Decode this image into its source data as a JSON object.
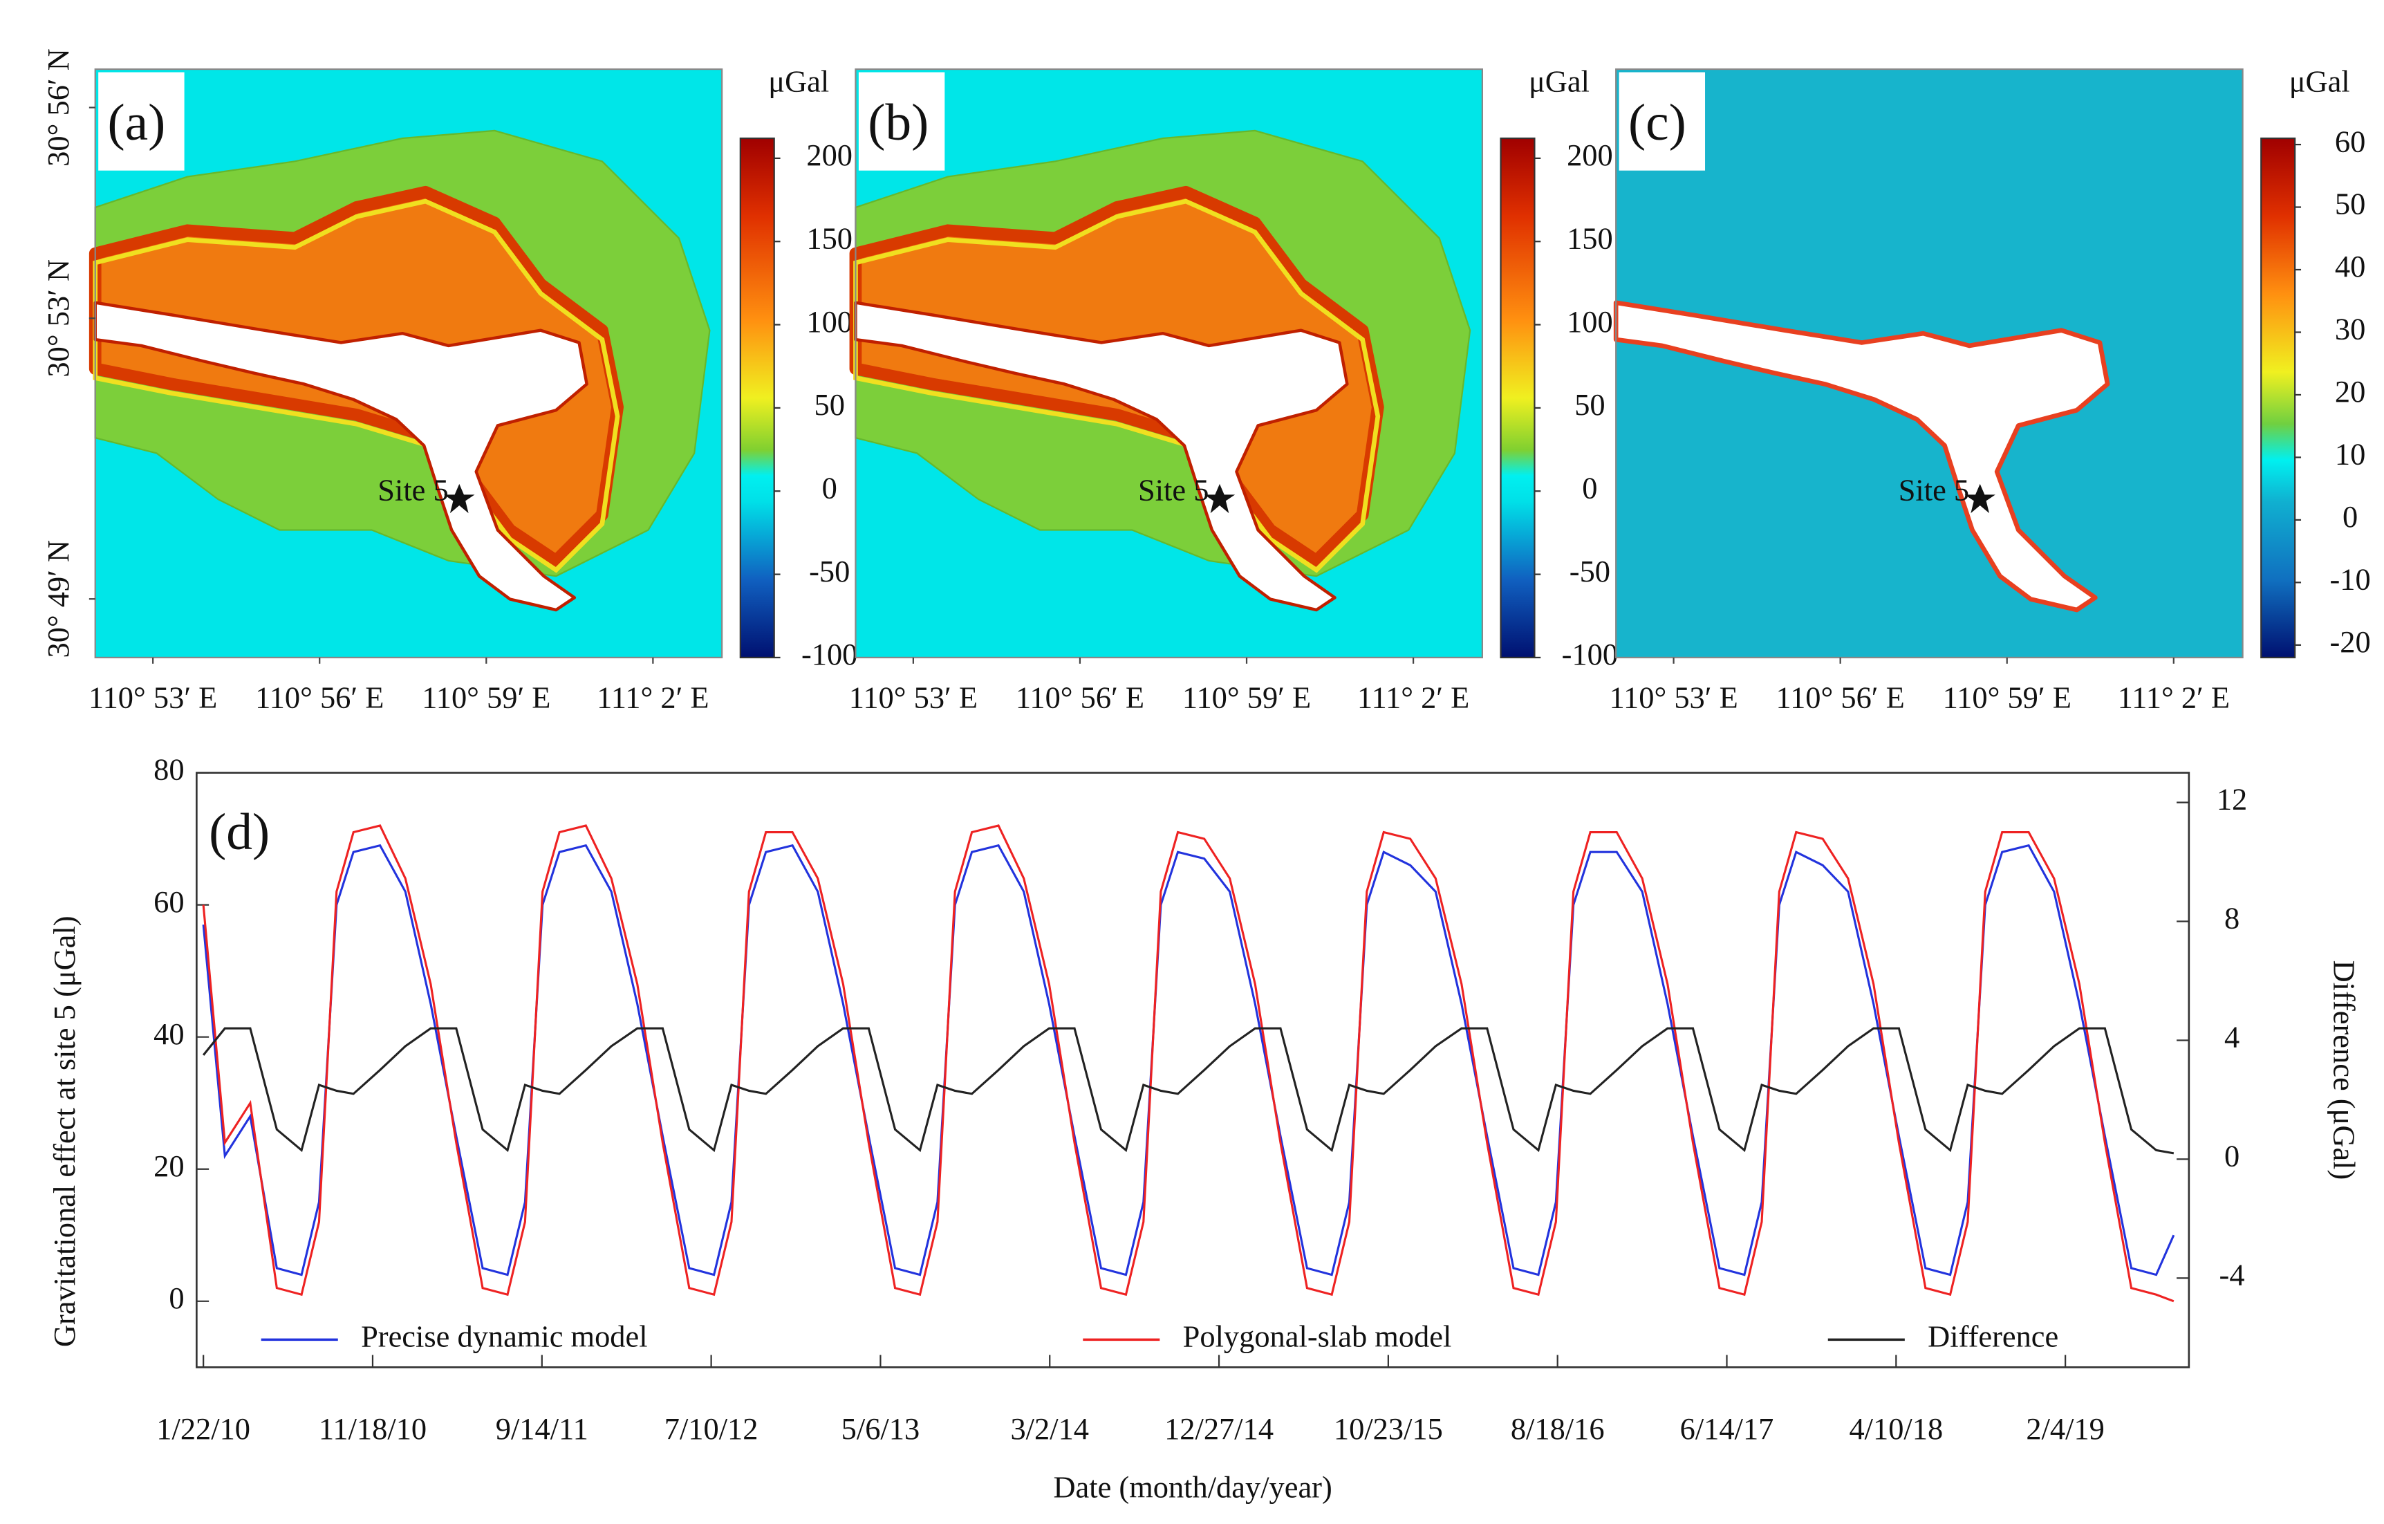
{
  "chart_data": [
    {
      "type": "map",
      "label": "(a)",
      "unit": "μGal",
      "site": "Site 5",
      "clim": [
        -100,
        212
      ],
      "cticks": [
        200,
        150,
        100,
        50,
        0,
        -50,
        -100
      ],
      "xlim": [
        110.866,
        111.054
      ],
      "xticks": [
        {
          "value": 110.8833,
          "label": "110° 53′ E"
        },
        {
          "value": 110.9333,
          "label": "110° 56′ E"
        },
        {
          "value": 110.9833,
          "label": "110° 59′ E"
        },
        {
          "value": 111.0333,
          "label": "111° 2′ E"
        }
      ],
      "ylim": [
        30.8028,
        30.9424
      ],
      "yticks": [
        {
          "value": 30.9333,
          "label": "30° 56′ N"
        },
        {
          "value": 30.8833,
          "label": "30° 53′ N"
        },
        {
          "value": 30.8167,
          "label": "30° 49′ N"
        }
      ]
    },
    {
      "type": "map",
      "label": "(b)",
      "unit": "μGal",
      "site": "Site 5",
      "clim": [
        -100,
        212
      ],
      "cticks": [
        200,
        150,
        100,
        50,
        0,
        -50,
        -100
      ],
      "xlim": [
        110.866,
        111.054
      ],
      "xticks": [
        {
          "value": 110.8833,
          "label": "110° 53′ E"
        },
        {
          "value": 110.9333,
          "label": "110° 56′ E"
        },
        {
          "value": 110.9833,
          "label": "110° 59′ E"
        },
        {
          "value": 111.0333,
          "label": "111° 2′ E"
        }
      ]
    },
    {
      "type": "map",
      "label": "(c)",
      "unit": "μGal",
      "site": "Site 5",
      "clim": [
        -22,
        61
      ],
      "cticks": [
        60,
        50,
        40,
        30,
        20,
        10,
        0,
        -10,
        -20
      ],
      "xlim": [
        110.866,
        111.054
      ],
      "xticks": [
        {
          "value": 110.8833,
          "label": "110° 53′ E"
        },
        {
          "value": 110.9333,
          "label": "110° 56′ E"
        },
        {
          "value": 110.9833,
          "label": "110° 59′ E"
        },
        {
          "value": 111.0333,
          "label": "111° 2′ E"
        }
      ]
    },
    {
      "type": "line",
      "label": "(d)",
      "ylabel": "Gravitational effect at site 5 (μGal)",
      "y2label": "Difference (μGal)",
      "xlabel": "Date (month/day/year)",
      "xlim": [
        "2010-01-10",
        "2019-09-11"
      ],
      "xticks": [
        {
          "value": "2010-01-22",
          "label": "1/22/10"
        },
        {
          "value": "2010-11-18",
          "label": "11/18/10"
        },
        {
          "value": "2011-09-14",
          "label": "9/14/11"
        },
        {
          "value": "2012-07-10",
          "label": "7/10/12"
        },
        {
          "value": "2013-05-06",
          "label": "5/6/13"
        },
        {
          "value": "2014-03-02",
          "label": "3/2/14"
        },
        {
          "value": "2014-12-27",
          "label": "12/27/14"
        },
        {
          "value": "2015-10-23",
          "label": "10/23/15"
        },
        {
          "value": "2016-08-18",
          "label": "8/18/16"
        },
        {
          "value": "2017-06-14",
          "label": "6/14/17"
        },
        {
          "value": "2018-04-10",
          "label": "4/10/18"
        },
        {
          "value": "2019-02-04",
          "label": "2/4/19"
        }
      ],
      "ylim": [
        -10,
        80
      ],
      "yticks": [
        0,
        20,
        40,
        60,
        80
      ],
      "y2lim": [
        -7,
        13
      ],
      "y2ticks": [
        -4,
        0,
        4,
        8,
        12
      ],
      "legend": "bottom",
      "x": [
        "2010-01-22",
        "2010-03-01",
        "2010-04-15",
        "2010-06-01",
        "2010-07-15",
        "2010-08-15",
        "2010-09-15",
        "2010-10-15",
        "2010-12-01",
        "2011-01-15",
        "2011-03-01",
        "2011-04-15",
        "2011-06-01",
        "2011-07-15",
        "2011-08-15",
        "2011-09-15",
        "2011-10-15",
        "2011-12-01",
        "2012-01-15",
        "2012-03-01",
        "2012-04-15",
        "2012-06-01",
        "2012-07-15",
        "2012-08-15",
        "2012-09-15",
        "2012-10-15",
        "2012-12-01",
        "2013-01-15",
        "2013-03-01",
        "2013-04-15",
        "2013-06-01",
        "2013-07-15",
        "2013-08-15",
        "2013-09-15",
        "2013-10-15",
        "2013-12-01",
        "2014-01-15",
        "2014-03-01",
        "2014-04-15",
        "2014-06-01",
        "2014-07-15",
        "2014-08-15",
        "2014-09-15",
        "2014-10-15",
        "2014-12-01",
        "2015-01-15",
        "2015-03-01",
        "2015-04-15",
        "2015-06-01",
        "2015-07-15",
        "2015-08-15",
        "2015-09-15",
        "2015-10-15",
        "2015-12-01",
        "2016-01-15",
        "2016-03-01",
        "2016-04-15",
        "2016-06-01",
        "2016-07-15",
        "2016-08-15",
        "2016-09-15",
        "2016-10-15",
        "2016-12-01",
        "2017-01-15",
        "2017-03-01",
        "2017-04-15",
        "2017-06-01",
        "2017-07-15",
        "2017-08-15",
        "2017-09-15",
        "2017-10-15",
        "2017-12-01",
        "2018-01-15",
        "2018-03-01",
        "2018-04-15",
        "2018-06-01",
        "2018-07-15",
        "2018-08-15",
        "2018-09-15",
        "2018-10-15",
        "2018-12-01",
        "2019-01-15",
        "2019-03-01",
        "2019-04-15",
        "2019-06-01",
        "2019-07-15",
        "2019-08-15"
      ],
      "series": [
        {
          "name": "Precise dynamic model",
          "color": "#2233dd",
          "values": [
            57,
            22,
            28,
            5,
            4,
            15,
            60,
            68,
            69,
            62,
            45,
            25,
            5,
            4,
            15,
            60,
            68,
            69,
            62,
            45,
            25,
            5,
            4,
            15,
            60,
            68,
            69,
            62,
            45,
            25,
            5,
            4,
            15,
            60,
            68,
            69,
            62,
            45,
            25,
            5,
            4,
            15,
            60,
            68,
            67,
            62,
            45,
            25,
            5,
            4,
            15,
            60,
            68,
            66,
            62,
            45,
            25,
            5,
            4,
            15,
            60,
            68,
            68,
            62,
            45,
            25,
            5,
            4,
            15,
            60,
            68,
            66,
            62,
            45,
            25,
            5,
            4,
            15,
            60,
            68,
            69,
            62,
            45,
            25,
            5,
            4,
            10
          ]
        },
        {
          "name": "Polygonal-slab model",
          "color": "#ee2222",
          "values": [
            60,
            24,
            30,
            2,
            1,
            12,
            62,
            71,
            72,
            64,
            48,
            24,
            2,
            1,
            12,
            62,
            71,
            72,
            64,
            48,
            24,
            2,
            1,
            12,
            62,
            71,
            71,
            64,
            48,
            24,
            2,
            1,
            12,
            62,
            71,
            72,
            64,
            48,
            24,
            2,
            1,
            12,
            62,
            71,
            70,
            64,
            48,
            24,
            2,
            1,
            12,
            62,
            71,
            70,
            64,
            48,
            24,
            2,
            1,
            12,
            62,
            71,
            71,
            64,
            48,
            24,
            2,
            1,
            12,
            62,
            71,
            70,
            64,
            48,
            24,
            2,
            1,
            12,
            62,
            71,
            71,
            64,
            48,
            24,
            2,
            1,
            0
          ]
        },
        {
          "name": "Difference",
          "color": "#222222",
          "axis": "y2",
          "values": [
            3.5,
            4.4,
            4.4,
            1.0,
            0.3,
            2.5,
            2.3,
            2.2,
            3.0,
            3.8,
            4.4,
            4.4,
            1.0,
            0.3,
            2.5,
            2.3,
            2.2,
            3.0,
            3.8,
            4.4,
            4.4,
            1.0,
            0.3,
            2.5,
            2.3,
            2.2,
            3.0,
            3.8,
            4.4,
            4.4,
            1.0,
            0.3,
            2.5,
            2.3,
            2.2,
            3.0,
            3.8,
            4.4,
            4.4,
            1.0,
            0.3,
            2.5,
            2.3,
            2.2,
            3.0,
            3.8,
            4.4,
            4.4,
            1.0,
            0.3,
            2.5,
            2.3,
            2.2,
            3.0,
            3.8,
            4.4,
            4.4,
            1.0,
            0.3,
            2.5,
            2.3,
            2.2,
            3.0,
            3.8,
            4.4,
            4.4,
            1.0,
            0.3,
            2.5,
            2.3,
            2.2,
            3.0,
            3.8,
            4.4,
            4.4,
            1.0,
            0.3,
            2.5,
            2.3,
            2.2,
            3.0,
            3.8,
            4.4,
            4.4,
            1.0,
            0.3,
            0.2
          ]
        }
      ]
    }
  ]
}
